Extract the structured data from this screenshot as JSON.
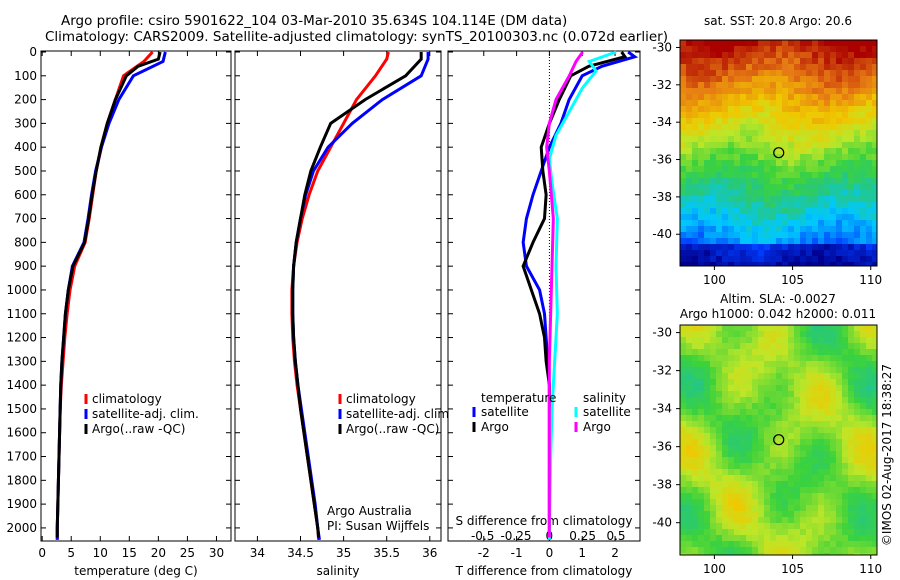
{
  "title_line1": "Argo profile: csiro 5901622_104 03-Mar-2010 35.634S 104.114E (DM data)",
  "title_line2": "Climatology: CARS2009. Satellite-adjusted climatology: synTS_20100303.nc (0.072d earlier)",
  "colors": {
    "climatology": "#ff0000",
    "satellite": "#0000ff",
    "argo": "#000000",
    "sat_salinity": "#00ffff",
    "argo_salinity": "#ff00ff"
  },
  "chart_data": [
    {
      "type": "line",
      "name": "temperature",
      "xlabel": "temperature (deg C)",
      "ylabel": "",
      "xlim": [
        -0.2,
        32.5
      ],
      "ylim": [
        0,
        2055
      ],
      "xticks": [
        0,
        5,
        10,
        15,
        20,
        25,
        30
      ],
      "yticks": [
        0,
        100,
        200,
        300,
        400,
        500,
        600,
        700,
        800,
        900,
        1000,
        1100,
        1200,
        1300,
        1400,
        1500,
        1600,
        1700,
        1800,
        1900,
        2000
      ],
      "legend": [
        "climatology",
        "satellite-adj. clim.",
        "Argo(..raw -QC)"
      ],
      "series": [
        {
          "name": "climatology",
          "color": "#ff0000",
          "points": [
            [
              19,
              0
            ],
            [
              17.5,
              40
            ],
            [
              14,
              100
            ],
            [
              12.6,
              200
            ],
            [
              11.2,
              300
            ],
            [
              10.2,
              400
            ],
            [
              9.3,
              500
            ],
            [
              8.7,
              600
            ],
            [
              8.1,
              700
            ],
            [
              7.4,
              800
            ],
            [
              5.6,
              900
            ],
            [
              4.8,
              1000
            ],
            [
              4.3,
              1100
            ],
            [
              3.9,
              1200
            ],
            [
              3.6,
              1300
            ],
            [
              3.3,
              1400
            ],
            [
              3.1,
              1500
            ],
            [
              3.0,
              1600
            ],
            [
              2.9,
              1700
            ],
            [
              2.8,
              1800
            ],
            [
              2.7,
              1900
            ],
            [
              2.6,
              2000
            ],
            [
              2.6,
              2050
            ]
          ]
        },
        {
          "name": "satellite-adj. clim.",
          "color": "#0000ff",
          "points": [
            [
              21.2,
              0
            ],
            [
              20.8,
              40
            ],
            [
              15.7,
              100
            ],
            [
              13.2,
              200
            ],
            [
              11.5,
              300
            ],
            [
              10.2,
              400
            ],
            [
              9.2,
              500
            ],
            [
              8.5,
              600
            ],
            [
              7.9,
              700
            ],
            [
              7.2,
              800
            ],
            [
              5.2,
              900
            ],
            [
              4.5,
              1000
            ],
            [
              4.0,
              1100
            ],
            [
              3.7,
              1200
            ],
            [
              3.4,
              1300
            ],
            [
              3.2,
              1400
            ],
            [
              3.1,
              1500
            ],
            [
              3.0,
              1600
            ],
            [
              2.9,
              1700
            ],
            [
              2.8,
              1800
            ],
            [
              2.7,
              1900
            ],
            [
              2.6,
              2000
            ],
            [
              2.6,
              2050
            ]
          ]
        },
        {
          "name": "Argo(..raw -QC)",
          "color": "#000000",
          "points": [
            [
              20.3,
              0
            ],
            [
              20,
              30
            ],
            [
              16.5,
              60
            ],
            [
              14.5,
              100
            ],
            [
              12.6,
              200
            ],
            [
              11.2,
              300
            ],
            [
              10.1,
              400
            ],
            [
              9.3,
              500
            ],
            [
              8.6,
              600
            ],
            [
              8.0,
              700
            ],
            [
              7.3,
              800
            ],
            [
              5.3,
              900
            ],
            [
              4.5,
              1000
            ],
            [
              4.0,
              1100
            ],
            [
              3.7,
              1200
            ],
            [
              3.4,
              1300
            ],
            [
              3.2,
              1400
            ],
            [
              3.1,
              1500
            ],
            [
              3.0,
              1600
            ],
            [
              2.9,
              1700
            ],
            [
              2.8,
              1800
            ],
            [
              2.7,
              1900
            ],
            [
              2.6,
              2000
            ],
            [
              2.6,
              2040
            ]
          ]
        }
      ]
    },
    {
      "type": "line",
      "name": "salinity",
      "xlabel": "salinity",
      "ylabel": "",
      "xlim": [
        33.74,
        36.13
      ],
      "ylim": [
        0,
        2055
      ],
      "xticks": [
        34,
        34.5,
        35,
        35.5,
        36
      ],
      "legend": [
        "climatology",
        "satellite-adj. clim.",
        "Argo(..raw -QC)"
      ],
      "annotation": [
        "Argo Australia",
        "PI: Susan Wijffels"
      ],
      "series": [
        {
          "name": "climatology",
          "color": "#ff0000",
          "points": [
            [
              35.52,
              0
            ],
            [
              35.5,
              30
            ],
            [
              35.37,
              100
            ],
            [
              35.15,
              200
            ],
            [
              35.0,
              300
            ],
            [
              34.85,
              400
            ],
            [
              34.7,
              500
            ],
            [
              34.6,
              600
            ],
            [
              34.52,
              700
            ],
            [
              34.46,
              800
            ],
            [
              34.42,
              900
            ],
            [
              34.4,
              1000
            ],
            [
              34.4,
              1100
            ],
            [
              34.41,
              1200
            ],
            [
              34.43,
              1300
            ],
            [
              34.46,
              1400
            ],
            [
              34.5,
              1500
            ],
            [
              34.54,
              1600
            ],
            [
              34.58,
              1700
            ],
            [
              34.62,
              1800
            ],
            [
              34.66,
              1900
            ],
            [
              34.7,
              2000
            ],
            [
              34.71,
              2050
            ]
          ]
        },
        {
          "name": "satellite-adj. clim.",
          "color": "#0000ff",
          "points": [
            [
              35.98,
              0
            ],
            [
              35.98,
              30
            ],
            [
              35.9,
              100
            ],
            [
              35.45,
              200
            ],
            [
              35.1,
              300
            ],
            [
              34.82,
              400
            ],
            [
              34.65,
              500
            ],
            [
              34.56,
              600
            ],
            [
              34.5,
              700
            ],
            [
              34.45,
              800
            ],
            [
              34.42,
              900
            ],
            [
              34.41,
              1000
            ],
            [
              34.41,
              1100
            ],
            [
              34.42,
              1200
            ],
            [
              34.44,
              1300
            ],
            [
              34.47,
              1400
            ],
            [
              34.51,
              1500
            ],
            [
              34.55,
              1600
            ],
            [
              34.59,
              1700
            ],
            [
              34.63,
              1800
            ],
            [
              34.67,
              1900
            ],
            [
              34.7,
              2000
            ],
            [
              34.72,
              2050
            ]
          ]
        },
        {
          "name": "Argo(..raw -QC)",
          "color": "#000000",
          "points": [
            [
              35.9,
              0
            ],
            [
              35.9,
              30
            ],
            [
              35.72,
              100
            ],
            [
              35.25,
              200
            ],
            [
              34.85,
              300
            ],
            [
              34.73,
              400
            ],
            [
              34.62,
              500
            ],
            [
              34.55,
              600
            ],
            [
              34.5,
              700
            ],
            [
              34.45,
              800
            ],
            [
              34.42,
              900
            ],
            [
              34.41,
              1000
            ],
            [
              34.41,
              1100
            ],
            [
              34.42,
              1200
            ],
            [
              34.44,
              1300
            ],
            [
              34.47,
              1400
            ],
            [
              34.5,
              1500
            ],
            [
              34.54,
              1600
            ],
            [
              34.58,
              1700
            ],
            [
              34.62,
              1800
            ],
            [
              34.66,
              1900
            ],
            [
              34.7,
              2000
            ],
            [
              34.71,
              2040
            ]
          ]
        }
      ]
    },
    {
      "type": "line",
      "name": "difference",
      "xlabel": "T difference from climatology",
      "x2label": "S difference from climatology",
      "xlim": [
        -3.09,
        2.76
      ],
      "x2lim": [
        -0.76,
        0.68
      ],
      "ylim": [
        0,
        2055
      ],
      "xticks": [
        -2,
        -1,
        0,
        1,
        2
      ],
      "x2ticks": [
        "-0.5",
        "-0.25",
        "0",
        "0.25",
        "0.5"
      ],
      "x2tick_values": [
        -0.5,
        -0.25,
        0,
        0.25,
        0.5
      ],
      "legend_temperature_title": "temperature",
      "legend_salinity_title": "salinity",
      "legend": [
        "satellite",
        "Argo",
        "satellite",
        "Argo"
      ],
      "series": [
        {
          "name": "T satellite",
          "axis": "T",
          "color": "#0000ff",
          "points": [
            [
              2.4,
              0
            ],
            [
              2.6,
              20
            ],
            [
              1.6,
              60
            ],
            [
              1.0,
              100
            ],
            [
              0.6,
              200
            ],
            [
              0.35,
              300
            ],
            [
              0.0,
              400
            ],
            [
              -0.25,
              500
            ],
            [
              -0.5,
              600
            ],
            [
              -0.7,
              700
            ],
            [
              -0.8,
              800
            ],
            [
              -0.7,
              900
            ],
            [
              -0.3,
              1000
            ],
            [
              -0.15,
              1100
            ],
            [
              -0.1,
              1200
            ],
            [
              -0.05,
              1300
            ],
            [
              0,
              1400
            ],
            [
              0,
              2050
            ]
          ]
        },
        {
          "name": "T Argo",
          "axis": "T",
          "color": "#000000",
          "points": [
            [
              2.2,
              0
            ],
            [
              2.3,
              20
            ],
            [
              1.2,
              60
            ],
            [
              0.65,
              100
            ],
            [
              0.3,
              200
            ],
            [
              0.0,
              300
            ],
            [
              -0.25,
              400
            ],
            [
              -0.2,
              500
            ],
            [
              -0.1,
              600
            ],
            [
              -0.15,
              700
            ],
            [
              -0.5,
              800
            ],
            [
              -0.8,
              900
            ],
            [
              -0.55,
              1000
            ],
            [
              -0.3,
              1100
            ],
            [
              -0.15,
              1200
            ],
            [
              -0.1,
              1300
            ],
            [
              0,
              1400
            ],
            [
              0,
              2040
            ]
          ]
        },
        {
          "name": "S satellite",
          "axis": "S",
          "color": "#00ffff",
          "points": [
            [
              0.5,
              0
            ],
            [
              0.3,
              40
            ],
            [
              0.35,
              80
            ],
            [
              0.25,
              150
            ],
            [
              0.15,
              250
            ],
            [
              0.05,
              350
            ],
            [
              0.0,
              450
            ],
            [
              0.02,
              550
            ],
            [
              0.06,
              700
            ],
            [
              0.05,
              900
            ],
            [
              0.06,
              1100
            ],
            [
              0.04,
              1300
            ],
            [
              0.02,
              1500
            ],
            [
              0.01,
              1700
            ],
            [
              0,
              2050
            ]
          ]
        },
        {
          "name": "S Argo",
          "axis": "S",
          "color": "#ff00ff",
          "points": [
            [
              0.25,
              0
            ],
            [
              0.2,
              40
            ],
            [
              0.15,
              100
            ],
            [
              0.05,
              200
            ],
            [
              0.0,
              300
            ],
            [
              -0.02,
              400
            ],
            [
              0.0,
              500
            ],
            [
              0.03,
              700
            ],
            [
              0.02,
              900
            ],
            [
              0.01,
              1100
            ],
            [
              0,
              1300
            ],
            [
              0,
              2040
            ]
          ]
        }
      ]
    },
    {
      "type": "heatmap",
      "name": "sst-map",
      "title": "sat. SST: 20.8  Argo: 20.6",
      "xlim": [
        97.8,
        110.4
      ],
      "ylim": [
        -41.7,
        -29.6
      ],
      "xticks": [
        100,
        105,
        110
      ],
      "yticks": [
        -30,
        -32,
        -34,
        -36,
        -38,
        -40
      ],
      "marker": {
        "lon": 104.114,
        "lat": -35.634
      }
    },
    {
      "type": "heatmap",
      "name": "sla-map",
      "title": "Altim. SLA: -0.0027",
      "subtitle": "Argo h1000: 0.042 h2000: 0.011",
      "xlim": [
        97.8,
        110.4
      ],
      "ylim": [
        -41.7,
        -29.6
      ],
      "xticks": [
        100,
        105,
        110
      ],
      "yticks": [
        -30,
        -32,
        -34,
        -36,
        -38,
        -40
      ],
      "marker": {
        "lon": 104.114,
        "lat": -35.634
      }
    }
  ],
  "credit": "©IMOS 02-Aug-2017 18:38:27"
}
